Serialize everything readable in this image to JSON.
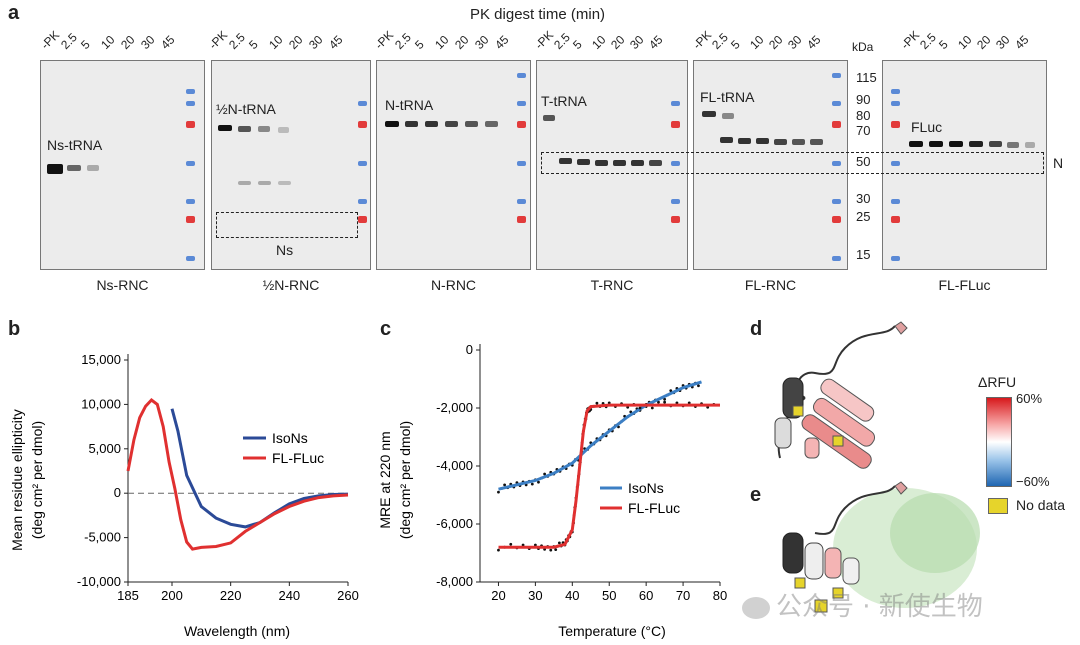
{
  "panel_a": {
    "letter": "a",
    "header": "PK digest time (min)",
    "lanes": [
      "-PK",
      "2.5",
      "5",
      "10",
      "20",
      "30",
      "45"
    ],
    "kda_unit": "kDa",
    "kda_markers": [
      "115",
      "90",
      "80",
      "70",
      "50",
      "30",
      "25",
      "15"
    ],
    "gels": [
      {
        "title": "Ns-RNC",
        "band_label": "Ns-tRNA"
      },
      {
        "title": "½N-RNC",
        "band_label": "½N-tRNA",
        "box_label": "Ns"
      },
      {
        "title": "N-RNC",
        "band_label": "N-tRNA"
      },
      {
        "title": "T-RNC",
        "band_label": "T-tRNA"
      },
      {
        "title": "FL-RNC",
        "band_label": "FL-tRNA"
      },
      {
        "title": "FL-FLuc",
        "band_label": "FLuc"
      }
    ],
    "n_label": "N"
  },
  "panel_b": {
    "letter": "b",
    "chart_data": {
      "type": "line",
      "title": "",
      "xlabel": "Wavelength (nm)",
      "ylabel_line1": "Mean residue ellipticity",
      "ylabel_line2": "(deg cm² per dmol)",
      "xlim": [
        185,
        260
      ],
      "ylim": [
        -10000,
        15000
      ],
      "xticks": [
        "185",
        "200",
        "220",
        "240",
        "260"
      ],
      "yticks": [
        "15,000",
        "10,000",
        "5,000",
        "0",
        "-5,000",
        "-10,000"
      ],
      "series": [
        {
          "name": "IsoNs",
          "color": "#2b4a97",
          "x": [
            200,
            202,
            205,
            210,
            215,
            220,
            225,
            230,
            235,
            240,
            245,
            250,
            255,
            260
          ],
          "y": [
            9500,
            7000,
            2000,
            -1500,
            -2800,
            -3500,
            -3800,
            -3300,
            -2200,
            -1200,
            -600,
            -300,
            -150,
            -100
          ]
        },
        {
          "name": "FL-FLuc",
          "color": "#e03030",
          "x": [
            185,
            187,
            189,
            191,
            193,
            195,
            197,
            199,
            201,
            203,
            205,
            207,
            210,
            215,
            220,
            225,
            230,
            235,
            240,
            245,
            250,
            255,
            260
          ],
          "y": [
            2500,
            6000,
            8500,
            9800,
            10500,
            10000,
            7500,
            3500,
            500,
            -3000,
            -5500,
            -6300,
            -6100,
            -6000,
            -5600,
            -4300,
            -3300,
            -2300,
            -1500,
            -900,
            -500,
            -300,
            -200
          ]
        }
      ]
    }
  },
  "panel_c": {
    "letter": "c",
    "chart_data": {
      "type": "line",
      "title": "",
      "xlabel": "Temperature (°C)",
      "ylabel_line1": "MRE at 220 nm",
      "ylabel_line2": "(deg cm² per dmol)",
      "xlim": [
        15,
        80
      ],
      "ylim": [
        -8000,
        0
      ],
      "xticks": [
        "20",
        "30",
        "40",
        "50",
        "60",
        "70",
        "80"
      ],
      "yticks": [
        "0",
        "-2,000",
        "-4,000",
        "-6,000",
        "-8,000"
      ],
      "series": [
        {
          "name": "IsoNs",
          "color": "#3c7fc4",
          "x": [
            20,
            25,
            30,
            35,
            40,
            45,
            50,
            55,
            60,
            65,
            70,
            75
          ],
          "y": [
            -4800,
            -4650,
            -4500,
            -4250,
            -3900,
            -3300,
            -2800,
            -2300,
            -1900,
            -1600,
            -1300,
            -1100
          ]
        },
        {
          "name": "FL-FLuc",
          "color": "#e03030",
          "x": [
            20,
            30,
            35,
            38,
            40,
            41,
            42,
            43,
            44,
            45,
            50,
            60,
            70,
            80
          ],
          "y": [
            -6800,
            -6800,
            -6800,
            -6700,
            -6200,
            -5200,
            -4000,
            -2800,
            -2100,
            -1950,
            -1900,
            -1900,
            -1900,
            -1900
          ]
        }
      ]
    }
  },
  "panel_d": {
    "letter": "d"
  },
  "panel_e": {
    "letter": "e"
  },
  "legend_rfu": {
    "title": "ΔRFU",
    "max_label": "60%",
    "min_label": "−60%",
    "nodata_label": "No data",
    "nodata_color": "#e6d42b"
  },
  "watermark": "公众号 · 新使生物"
}
